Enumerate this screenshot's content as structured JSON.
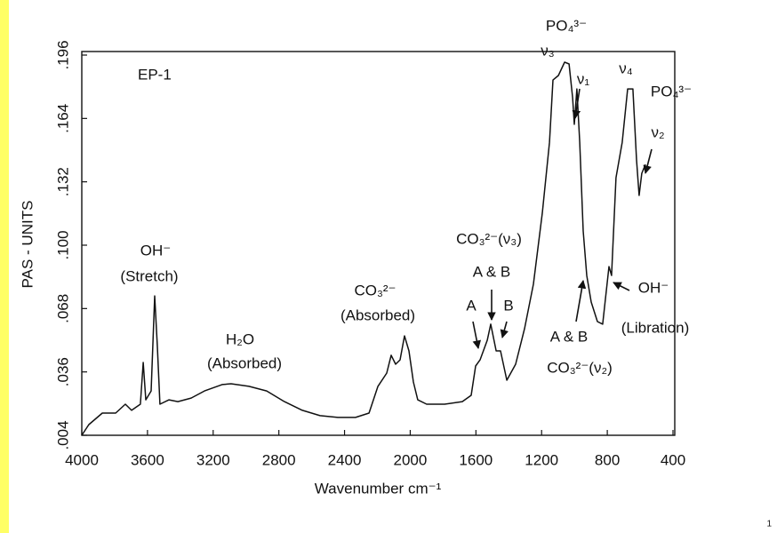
{
  "chart_data": {
    "type": "line",
    "title": "EP-1",
    "x_label": "Wavenumber cm⁻¹",
    "y_label": "PAS - UNITS",
    "color": "#111111",
    "x": [
      4000,
      3957,
      3875,
      3794,
      3735,
      3697,
      3643,
      3626,
      3610,
      3578,
      3556,
      3540,
      3524,
      3469,
      3415,
      3334,
      3253,
      3145,
      3091,
      2982,
      2874,
      2766,
      2657,
      2549,
      2441,
      2333,
      2251,
      2197,
      2143,
      2116,
      2089,
      2062,
      2035,
      2008,
      1981,
      1954,
      1900,
      1791,
      1683,
      1629,
      1602,
      1575,
      1531,
      1510,
      1477,
      1450,
      1412,
      1358,
      1304,
      1250,
      1196,
      1152,
      1131,
      1098,
      1060,
      1033,
      1011,
      1001,
      985,
      968,
      947,
      925,
      898,
      860,
      828,
      790,
      774,
      747,
      709,
      676,
      644,
      622,
      606,
      590,
      568
    ],
    "values": [
      0.004,
      0.0094,
      0.0152,
      0.0152,
      0.0197,
      0.0166,
      0.0197,
      0.0408,
      0.0219,
      0.0264,
      0.0744,
      0.0489,
      0.0197,
      0.0219,
      0.021,
      0.0228,
      0.0264,
      0.0296,
      0.03,
      0.0287,
      0.0264,
      0.021,
      0.0166,
      0.0139,
      0.013,
      0.013,
      0.0152,
      0.0287,
      0.0354,
      0.0444,
      0.0399,
      0.0421,
      0.0542,
      0.0466,
      0.0309,
      0.0219,
      0.0197,
      0.0197,
      0.021,
      0.0242,
      0.039,
      0.0421,
      0.052,
      0.0601,
      0.0466,
      0.0466,
      0.0318,
      0.0399,
      0.0578,
      0.0803,
      0.1162,
      0.152,
      0.1834,
      0.1857,
      0.1924,
      0.1915,
      0.1745,
      0.161,
      0.1789,
      0.152,
      0.1072,
      0.0847,
      0.0713,
      0.0614,
      0.0601,
      0.0892,
      0.0847,
      0.1341,
      0.152,
      0.1789,
      0.1789,
      0.1431,
      0.1251,
      0.1363,
      0.1408
    ],
    "xlim": [
      4000,
      400
    ],
    "xticks": [
      4000,
      3600,
      3200,
      2800,
      2400,
      2000,
      1600,
      1200,
      800,
      400
    ],
    "ylim": [
      0.004,
      0.196
    ],
    "yticks": [
      {
        "value": 0.004,
        "label": ".004"
      },
      {
        "value": 0.036,
        "label": ".036"
      },
      {
        "value": 0.068,
        "label": ".068"
      },
      {
        "value": 0.1,
        "label": ".100"
      },
      {
        "value": 0.132,
        "label": ".132"
      },
      {
        "value": 0.164,
        "label": ".164"
      },
      {
        "value": 0.196,
        "label": ".196"
      }
    ],
    "grid": false,
    "annotations": [
      "OH⁻",
      "(Stretch)",
      "H₂O",
      "(Absorbed)",
      "CO₃²⁻",
      "(Absorbed)",
      "CO₃²⁻(ν₃)",
      "A & B",
      "A",
      "B",
      "PO₄³⁻",
      "ν₃",
      "ν₁",
      "ν₄",
      "PO₄³⁻",
      "ν₂",
      "A & B",
      "CO₃²⁻(ν₂)",
      "OH⁻",
      "(Libration)"
    ],
    "slide_number": "1"
  }
}
